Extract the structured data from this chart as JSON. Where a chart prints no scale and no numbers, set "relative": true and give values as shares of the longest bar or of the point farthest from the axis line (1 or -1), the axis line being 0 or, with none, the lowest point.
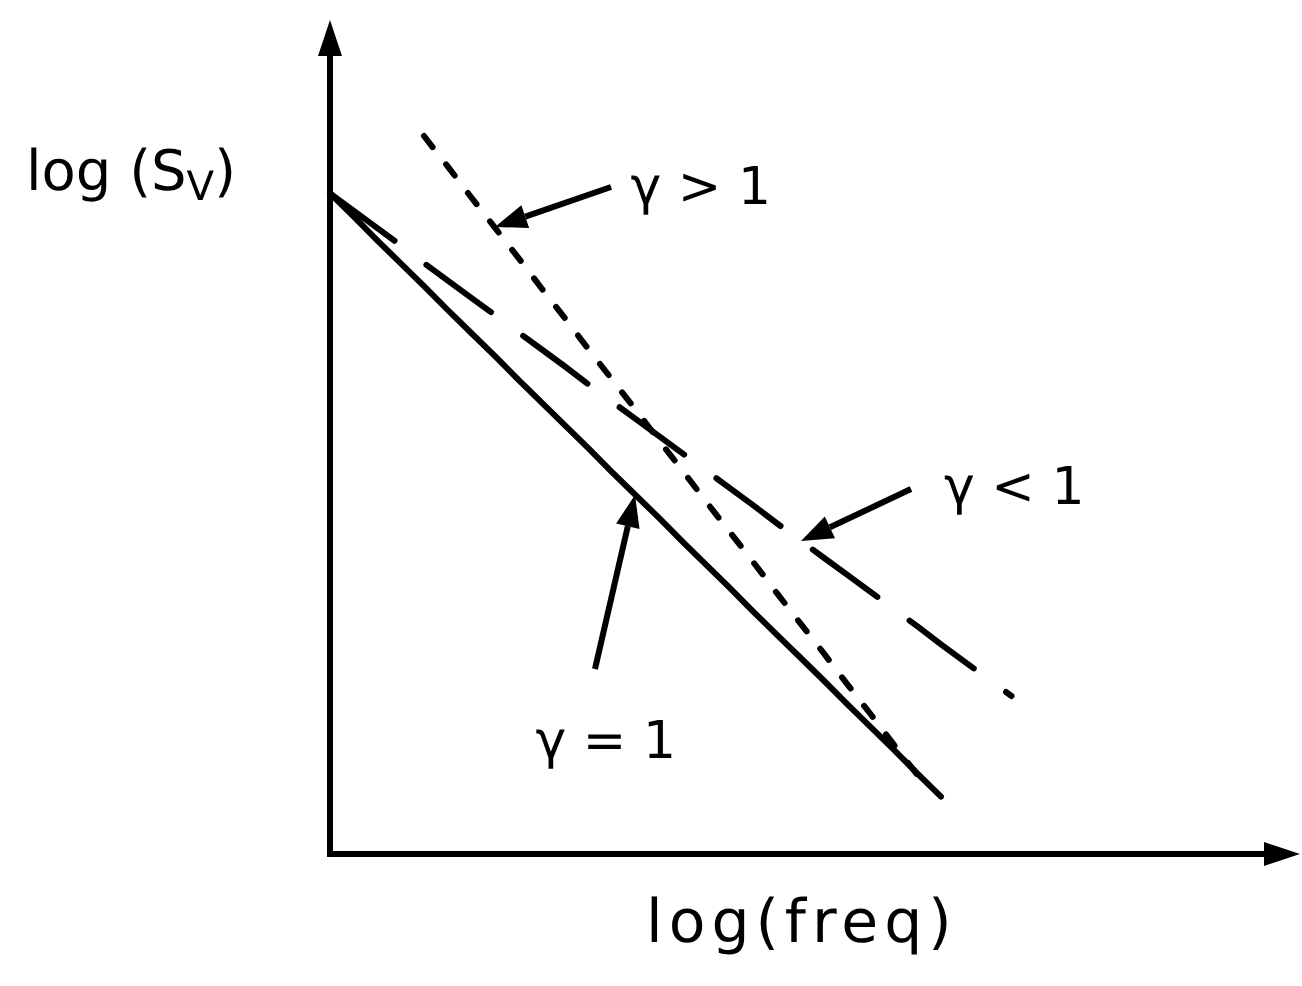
{
  "chart_data": {
    "type": "line",
    "relative": true,
    "tick_labels": false,
    "xlabel": "log(freq)",
    "ylabel": "log (S$_{V}$)",
    "annotations": [
      "γ > 1",
      "γ < 1",
      "γ = 1"
    ],
    "categories": [
      null,
      null,
      null,
      null,
      null,
      null,
      null,
      null,
      null,
      null,
      null,
      null,
      null,
      null,
      null,
      null,
      null,
      null,
      null,
      null,
      null,
      null,
      null,
      null,
      null,
      null,
      null,
      null,
      null,
      null,
      null,
      null,
      null,
      null,
      null,
      null,
      null,
      null,
      null,
      null,
      null
    ],
    "series": [
      {
        "color": "#000000",
        "line_style": "solid",
        "values": [
          0.92,
          0.888,
          0.855,
          0.823,
          0.791,
          0.758,
          0.726,
          0.694,
          0.661,
          0.629,
          0.597,
          0.565,
          0.532,
          0.5,
          0.468,
          0.435,
          0.403,
          0.371,
          0.338,
          0.306,
          0.274,
          0.242,
          0.209,
          0.177,
          0.145,
          0.112,
          0.08,
          null,
          null,
          null,
          null,
          null,
          null,
          null,
          null,
          null,
          null,
          null,
          null,
          null,
          null
        ]
      },
      {
        "color": "#000000",
        "line_style": "dashed",
        "values": [
          0.92,
          0.896,
          0.872,
          0.848,
          0.823,
          0.799,
          0.775,
          0.751,
          0.727,
          0.703,
          0.679,
          0.654,
          0.63,
          0.606,
          0.582,
          0.558,
          0.534,
          0.51,
          0.486,
          0.461,
          0.437,
          0.413,
          0.389,
          0.365,
          0.341,
          0.317,
          0.292,
          0.268,
          0.244,
          0.22,
          null,
          null,
          null,
          null,
          null,
          null,
          null,
          null,
          null,
          null,
          null
        ]
      },
      {
        "color": "#000000",
        "line_style": "dotted",
        "values": [
          null,
          null,
          null,
          null,
          1,
          0.958,
          0.915,
          0.873,
          0.831,
          0.788,
          0.746,
          0.703,
          0.661,
          0.619,
          0.576,
          0.534,
          0.491,
          0.449,
          0.407,
          0.364,
          0.322,
          0.28,
          0.237,
          0.195,
          0.152,
          0.11,
          null,
          null,
          null,
          null,
          null,
          null,
          null,
          null,
          null,
          null,
          null,
          null,
          null,
          null,
          null
        ]
      }
    ]
  }
}
